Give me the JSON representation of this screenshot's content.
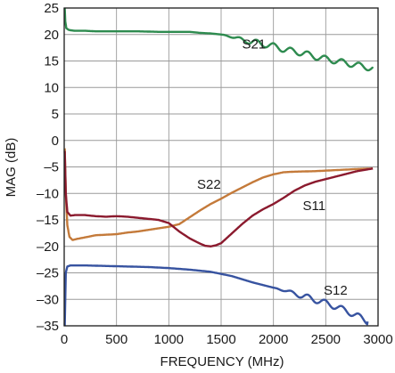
{
  "chart_data": {
    "type": "line",
    "xlabel": "FREQUENCY (MHz)",
    "ylabel": "MAG (dB)",
    "xlim": [
      0,
      3000
    ],
    "ylim": [
      -35,
      25
    ],
    "xticks": [
      0,
      500,
      1000,
      1500,
      2000,
      2500,
      3000
    ],
    "yticks": [
      25,
      20,
      15,
      10,
      5,
      0,
      -5,
      -10,
      -15,
      -20,
      -25,
      -30,
      -35
    ],
    "xtick_labels": [
      "0",
      "500",
      "1000",
      "1500",
      "2000",
      "2500",
      "3000"
    ],
    "ytick_labels": [
      "25",
      "20",
      "15",
      "10",
      "5",
      "0",
      "–5",
      "–10",
      "–15",
      "–20",
      "–25",
      "–30",
      "–35"
    ],
    "grid": true,
    "legend": "none",
    "series": [
      {
        "name": "S21",
        "color": "#2e8b4f",
        "label_at": [
          1700,
          18.2
        ],
        "x": [
          5,
          10,
          20,
          40,
          60,
          100,
          200,
          300,
          500,
          700,
          900,
          1100,
          1200,
          1300,
          1400,
          1500,
          1600,
          1700,
          1800,
          1900,
          2000,
          2100,
          2200,
          2300,
          2400,
          2500,
          2600,
          2700,
          2800,
          2850,
          2900,
          2950
        ],
        "y": [
          25,
          22.5,
          21.2,
          20.9,
          20.8,
          20.7,
          20.7,
          20.6,
          20.6,
          20.6,
          20.5,
          20.5,
          20.5,
          20.3,
          20.2,
          20.0,
          19.6,
          19.0,
          18.6,
          18.2,
          17.8,
          17.2,
          16.8,
          16.4,
          15.8,
          15.4,
          15.0,
          14.6,
          14.2,
          14.0,
          13.8,
          13.6
        ]
      },
      {
        "name": "S22",
        "color": "#c47a3a",
        "label_at": [
          1270,
          -8.3
        ],
        "x": [
          5,
          15,
          30,
          50,
          80,
          120,
          200,
          300,
          400,
          500,
          600,
          700,
          800,
          900,
          1000,
          1100,
          1200,
          1300,
          1400,
          1500,
          1600,
          1700,
          1800,
          1900,
          2000,
          2100,
          2200,
          2400,
          2600,
          2800,
          2950
        ],
        "y": [
          -1.5,
          -10,
          -16,
          -18.2,
          -18.8,
          -18.6,
          -18.3,
          -17.9,
          -17.8,
          -17.7,
          -17.4,
          -17.2,
          -16.9,
          -16.6,
          -16.3,
          -15.8,
          -14.5,
          -13.2,
          -12.0,
          -11.0,
          -9.9,
          -8.9,
          -7.9,
          -7.0,
          -6.4,
          -6.0,
          -5.9,
          -5.8,
          -5.6,
          -5.4,
          -5.3
        ]
      },
      {
        "name": "S11",
        "color": "#8b1a2e",
        "label_at": [
          2280,
          -12.3
        ],
        "x": [
          5,
          15,
          30,
          60,
          100,
          200,
          300,
          400,
          500,
          600,
          700,
          800,
          900,
          1000,
          1100,
          1200,
          1300,
          1350,
          1400,
          1450,
          1500,
          1600,
          1700,
          1800,
          1900,
          2000,
          2100,
          2200,
          2300,
          2400,
          2600,
          2800,
          2950
        ],
        "y": [
          -2,
          -10,
          -13.5,
          -14.2,
          -14.1,
          -14.1,
          -14.3,
          -14.4,
          -14.3,
          -14.4,
          -14.6,
          -14.8,
          -15.0,
          -15.6,
          -17.2,
          -18.5,
          -19.5,
          -19.9,
          -20.0,
          -19.8,
          -19.4,
          -17.6,
          -15.8,
          -14.2,
          -13.0,
          -12.0,
          -10.8,
          -9.5,
          -8.5,
          -7.8,
          -6.8,
          -5.8,
          -5.3
        ]
      },
      {
        "name": "S12",
        "color": "#3753a0",
        "label_at": [
          2480,
          -28.3
        ],
        "x": [
          5,
          15,
          30,
          60,
          100,
          200,
          400,
          600,
          800,
          1000,
          1200,
          1400,
          1500,
          1600,
          1700,
          1800,
          1900,
          2000,
          2100,
          2200,
          2300,
          2400,
          2500,
          2600,
          2700,
          2800,
          2900
        ],
        "y": [
          -35,
          -25,
          -23.8,
          -23.6,
          -23.6,
          -23.6,
          -23.7,
          -23.8,
          -23.9,
          -24.1,
          -24.4,
          -24.8,
          -25.2,
          -25.6,
          -26.2,
          -26.8,
          -27.3,
          -27.8,
          -28.3,
          -28.9,
          -29.5,
          -30.1,
          -30.7,
          -31.4,
          -32.2,
          -33.1,
          -34.2
        ]
      }
    ]
  }
}
